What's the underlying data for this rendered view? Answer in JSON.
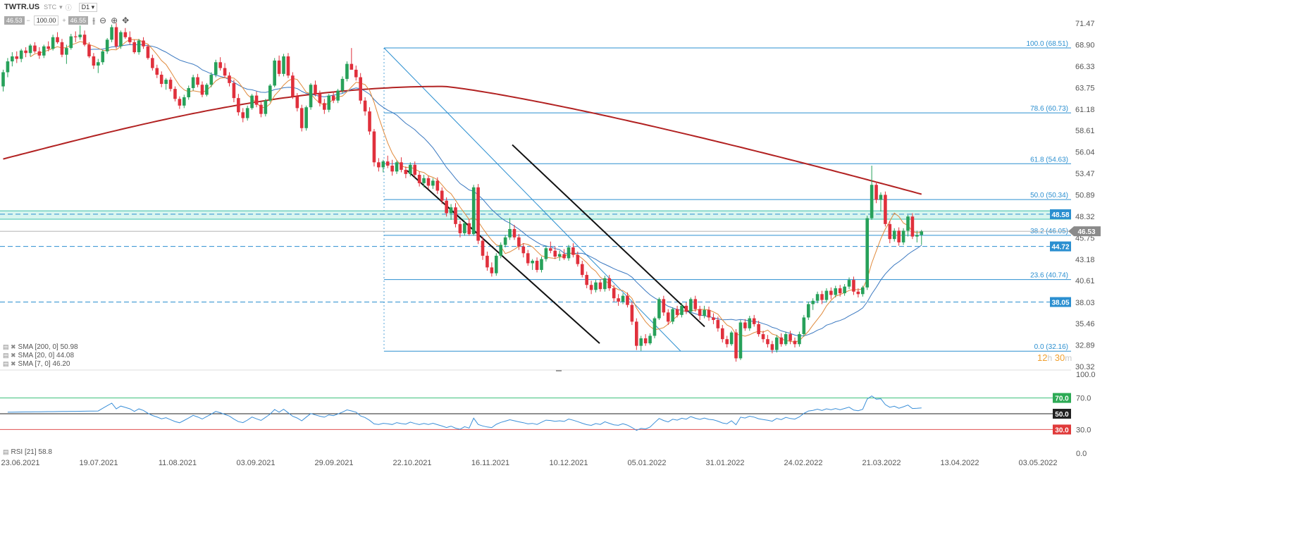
{
  "toolbar": {
    "symbol": "TWTR.US",
    "type": "STC",
    "info": "ⓘ",
    "interval": "D1",
    "bid": "46.53",
    "volume": "100.00",
    "ask": "46.55",
    "minus": "−",
    "plus": "+"
  },
  "legend": {
    "sma200": "SMA [200, 0] 50.98",
    "sma20": "SMA [20, 0] 44.08",
    "sma7": "SMA [7, 0] 46.20",
    "rsi": "RSI [21] 58.8"
  },
  "timer": {
    "hours": "12",
    "h": "h",
    "minutes": "30",
    "m": "m"
  },
  "colors": {
    "up": "#27a15a",
    "down": "#e0303c",
    "sma200": "#b22222",
    "sma20": "#3a78c0",
    "sma7": "#e08a3c",
    "fib": "#2b8fd0",
    "rsi": "#3b8fd8"
  },
  "chart_data": {
    "type": "candlestick",
    "ylim": [
      30.32,
      71.47
    ],
    "y_ticks": [
      "71.47",
      "68.90",
      "66.33",
      "63.75",
      "61.18",
      "58.61",
      "56.04",
      "53.47",
      "50.89",
      "48.32",
      "45.75",
      "43.18",
      "40.61",
      "38.03",
      "35.46",
      "32.89",
      "30.32"
    ],
    "x_ticks": [
      "23.06.2021",
      "19.07.2021",
      "11.08.2021",
      "03.09.2021",
      "29.09.2021",
      "22.10.2021",
      "16.11.2021",
      "10.12.2021",
      "05.01.2022",
      "31.01.2022",
      "24.02.2022",
      "21.03.2022",
      "13.04.2022",
      "03.05.2022"
    ],
    "fib_levels": [
      {
        "label": "100.0 (68.51)",
        "value": 68.51
      },
      {
        "label": "78.6 (60.73)",
        "value": 60.73
      },
      {
        "label": "61.8 (54.63)",
        "value": 54.63
      },
      {
        "label": "50.0 (50.34)",
        "value": 50.34
      },
      {
        "label": "38.2 (46.05)",
        "value": 46.05
      },
      {
        "label": "23.6 (40.74)",
        "value": 40.74
      },
      {
        "label": "0.0 (32.16)",
        "value": 32.16
      }
    ],
    "price_tags": [
      {
        "label": "48.58",
        "value": 48.58
      },
      {
        "label": "46.53",
        "value": 46.53
      },
      {
        "label": "44.72",
        "value": 44.72
      },
      {
        "label": "38.05",
        "value": 38.05
      }
    ],
    "rsi": {
      "ylim": [
        0,
        100
      ],
      "ticks": [
        "100.0",
        "70.0",
        "30.0",
        "0.0"
      ],
      "levels": [
        {
          "label": "70.0",
          "value": 70
        },
        {
          "label": "50.0",
          "value": 50
        },
        {
          "label": "30.0",
          "value": 30
        }
      ],
      "last": 58.8
    },
    "ohlc": [
      [
        63.9,
        65.9,
        63.3,
        65.6
      ],
      [
        65.6,
        67.3,
        65.0,
        66.9
      ],
      [
        66.9,
        68.0,
        66.3,
        67.5
      ],
      [
        67.5,
        68.1,
        66.7,
        67.2
      ],
      [
        67.2,
        68.4,
        66.8,
        68.2
      ],
      [
        68.2,
        68.6,
        67.4,
        67.9
      ],
      [
        67.9,
        69.0,
        67.5,
        68.8
      ],
      [
        68.8,
        69.2,
        67.9,
        68.1
      ],
      [
        68.1,
        68.6,
        67.2,
        67.6
      ],
      [
        67.6,
        68.9,
        67.3,
        68.7
      ],
      [
        68.7,
        69.3,
        68.1,
        68.4
      ],
      [
        68.4,
        70.1,
        68.2,
        69.8
      ],
      [
        69.8,
        70.4,
        69.0,
        69.2
      ],
      [
        69.2,
        69.6,
        67.4,
        67.7
      ],
      [
        67.7,
        68.9,
        66.6,
        68.5
      ],
      [
        68.5,
        70.2,
        68.3,
        69.9
      ],
      [
        69.9,
        70.5,
        69.2,
        69.8
      ],
      [
        69.8,
        71.2,
        69.5,
        70.1
      ],
      [
        70.1,
        70.6,
        68.7,
        68.9
      ],
      [
        68.9,
        69.2,
        67.3,
        67.5
      ],
      [
        67.5,
        67.9,
        66.0,
        66.4
      ],
      [
        66.4,
        67.2,
        65.5,
        66.8
      ],
      [
        66.8,
        68.3,
        66.5,
        68.1
      ],
      [
        68.1,
        69.7,
        67.8,
        69.5
      ],
      [
        69.5,
        71.3,
        69.2,
        71.0
      ],
      [
        71.0,
        71.5,
        68.4,
        68.7
      ],
      [
        68.7,
        70.6,
        68.4,
        70.4
      ],
      [
        70.4,
        70.9,
        69.6,
        69.8
      ],
      [
        69.8,
        70.5,
        68.9,
        69.2
      ],
      [
        69.2,
        69.5,
        67.8,
        68.0
      ],
      [
        68.0,
        69.6,
        67.7,
        69.4
      ],
      [
        69.4,
        69.8,
        68.4,
        68.7
      ],
      [
        68.7,
        68.9,
        67.1,
        67.3
      ],
      [
        67.3,
        67.7,
        65.8,
        66.1
      ],
      [
        66.1,
        66.5,
        64.9,
        65.3
      ],
      [
        65.3,
        65.7,
        63.8,
        64.2
      ],
      [
        64.2,
        64.9,
        63.5,
        64.7
      ],
      [
        64.7,
        65.0,
        63.3,
        63.6
      ],
      [
        63.6,
        63.9,
        62.1,
        62.4
      ],
      [
        62.4,
        62.7,
        61.2,
        61.6
      ],
      [
        61.6,
        62.9,
        61.3,
        62.6
      ],
      [
        62.6,
        64.0,
        62.3,
        63.7
      ],
      [
        63.7,
        65.3,
        63.4,
        65.0
      ],
      [
        65.0,
        65.4,
        63.8,
        64.1
      ],
      [
        64.1,
        64.5,
        62.6,
        62.9
      ],
      [
        62.9,
        64.3,
        62.7,
        64.1
      ],
      [
        64.1,
        65.6,
        63.8,
        65.3
      ],
      [
        65.3,
        67.1,
        65.0,
        66.8
      ],
      [
        66.8,
        67.4,
        65.8,
        66.1
      ],
      [
        66.1,
        66.7,
        64.9,
        65.2
      ],
      [
        65.2,
        65.6,
        63.9,
        64.3
      ],
      [
        64.3,
        64.7,
        62.0,
        62.5
      ],
      [
        62.5,
        63.0,
        60.4,
        60.8
      ],
      [
        60.8,
        61.3,
        59.6,
        60.1
      ],
      [
        60.1,
        61.6,
        59.8,
        61.3
      ],
      [
        61.3,
        63.0,
        61.1,
        62.8
      ],
      [
        62.8,
        63.3,
        61.4,
        61.7
      ],
      [
        61.7,
        62.0,
        60.2,
        60.6
      ],
      [
        60.6,
        62.4,
        60.3,
        62.2
      ],
      [
        62.2,
        64.2,
        62.0,
        64.0
      ],
      [
        64.0,
        67.3,
        63.8,
        67.0
      ],
      [
        67.0,
        67.6,
        65.1,
        65.4
      ],
      [
        65.4,
        67.8,
        65.1,
        67.5
      ],
      [
        67.5,
        67.9,
        64.9,
        65.2
      ],
      [
        65.2,
        65.6,
        62.4,
        62.7
      ],
      [
        62.7,
        63.1,
        60.9,
        61.3
      ],
      [
        61.3,
        61.7,
        58.5,
        58.9
      ],
      [
        58.9,
        61.6,
        58.6,
        61.4
      ],
      [
        61.4,
        64.3,
        61.1,
        64.1
      ],
      [
        64.1,
        64.6,
        62.7,
        63.0
      ],
      [
        63.0,
        63.4,
        61.5,
        61.9
      ],
      [
        61.9,
        62.4,
        60.6,
        61.1
      ],
      [
        61.1,
        63.0,
        60.8,
        62.8
      ],
      [
        62.8,
        63.3,
        61.9,
        62.2
      ],
      [
        62.2,
        63.6,
        61.9,
        63.4
      ],
      [
        63.4,
        65.1,
        63.1,
        64.8
      ],
      [
        64.8,
        66.9,
        64.5,
        66.6
      ],
      [
        66.6,
        68.5,
        66.3,
        65.9
      ],
      [
        65.9,
        66.4,
        64.6,
        65.0
      ],
      [
        65.0,
        65.5,
        61.8,
        62.2
      ],
      [
        62.2,
        62.6,
        60.4,
        60.9
      ],
      [
        60.9,
        61.4,
        58.1,
        58.5
      ],
      [
        58.5,
        58.8,
        54.3,
        54.8
      ],
      [
        54.8,
        55.3,
        53.7,
        54.2
      ],
      [
        54.2,
        55.1,
        53.6,
        54.9
      ],
      [
        54.9,
        55.6,
        54.1,
        54.4
      ],
      [
        54.4,
        55.1,
        53.2,
        53.7
      ],
      [
        53.7,
        55.0,
        53.4,
        54.8
      ],
      [
        54.8,
        55.4,
        53.6,
        53.9
      ],
      [
        53.9,
        54.3,
        52.9,
        53.4
      ],
      [
        53.4,
        54.8,
        53.1,
        54.5
      ],
      [
        54.5,
        54.9,
        53.0,
        53.3
      ],
      [
        53.3,
        53.7,
        51.9,
        52.3
      ],
      [
        52.3,
        53.3,
        51.8,
        52.9
      ],
      [
        52.9,
        53.2,
        51.6,
        52.0
      ],
      [
        52.0,
        52.9,
        51.6,
        52.6
      ],
      [
        52.6,
        53.0,
        51.0,
        51.4
      ],
      [
        51.4,
        51.8,
        49.8,
        50.2
      ],
      [
        50.2,
        50.6,
        48.3,
        48.7
      ],
      [
        48.7,
        49.8,
        47.9,
        49.4
      ],
      [
        49.4,
        49.9,
        47.0,
        47.4
      ],
      [
        47.4,
        47.8,
        45.8,
        46.3
      ],
      [
        46.3,
        47.8,
        46.0,
        47.5
      ],
      [
        47.5,
        48.0,
        46.0,
        46.2
      ],
      [
        46.2,
        52.1,
        46.0,
        51.8
      ],
      [
        51.8,
        52.2,
        45.0,
        45.4
      ],
      [
        45.4,
        45.9,
        43.1,
        43.6
      ],
      [
        43.6,
        44.1,
        41.8,
        42.2
      ],
      [
        42.2,
        42.8,
        41.1,
        41.5
      ],
      [
        41.5,
        43.9,
        41.2,
        43.6
      ],
      [
        43.6,
        45.2,
        43.3,
        44.9
      ],
      [
        44.9,
        46.1,
        44.6,
        45.8
      ],
      [
        45.8,
        48.1,
        45.5,
        46.8
      ],
      [
        46.8,
        47.3,
        45.5,
        45.8
      ],
      [
        45.8,
        46.2,
        44.3,
        44.7
      ],
      [
        44.7,
        45.1,
        43.4,
        43.9
      ],
      [
        43.9,
        44.3,
        42.4,
        42.7
      ],
      [
        42.7,
        43.2,
        41.9,
        43.0
      ],
      [
        43.0,
        43.4,
        41.6,
        41.9
      ],
      [
        41.9,
        43.5,
        41.6,
        43.2
      ],
      [
        43.2,
        44.8,
        42.9,
        44.5
      ],
      [
        44.5,
        45.3,
        43.9,
        44.2
      ],
      [
        44.2,
        44.7,
        43.2,
        43.5
      ],
      [
        43.5,
        44.2,
        43.0,
        43.8
      ],
      [
        43.8,
        44.4,
        43.1,
        43.3
      ],
      [
        43.3,
        44.9,
        43.0,
        44.6
      ],
      [
        44.6,
        45.1,
        43.4,
        43.7
      ],
      [
        43.7,
        44.1,
        42.3,
        42.6
      ],
      [
        42.6,
        43.0,
        41.0,
        41.3
      ],
      [
        41.3,
        41.7,
        39.7,
        40.1
      ],
      [
        40.1,
        40.6,
        39.0,
        39.5
      ],
      [
        39.5,
        40.7,
        39.2,
        40.4
      ],
      [
        40.4,
        40.8,
        39.3,
        39.6
      ],
      [
        39.6,
        41.2,
        39.3,
        40.9
      ],
      [
        40.9,
        41.3,
        39.4,
        39.7
      ],
      [
        39.7,
        40.1,
        38.1,
        38.5
      ],
      [
        38.5,
        39.0,
        37.6,
        38.1
      ],
      [
        38.1,
        39.1,
        37.8,
        38.8
      ],
      [
        38.8,
        39.2,
        37.4,
        37.7
      ],
      [
        37.7,
        38.1,
        35.3,
        35.7
      ],
      [
        35.7,
        36.1,
        32.3,
        32.8
      ],
      [
        32.8,
        34.0,
        32.2,
        33.7
      ],
      [
        33.7,
        34.2,
        32.8,
        33.1
      ],
      [
        33.1,
        34.3,
        32.9,
        34.0
      ],
      [
        34.0,
        36.3,
        33.7,
        36.1
      ],
      [
        36.1,
        38.6,
        35.9,
        38.4
      ],
      [
        38.4,
        38.8,
        36.4,
        36.8
      ],
      [
        36.8,
        37.2,
        35.3,
        35.7
      ],
      [
        35.7,
        37.4,
        35.4,
        37.2
      ],
      [
        37.2,
        37.6,
        36.2,
        36.5
      ],
      [
        36.5,
        37.9,
        36.2,
        37.6
      ],
      [
        37.6,
        38.0,
        36.6,
        36.9
      ],
      [
        36.9,
        38.6,
        36.6,
        38.4
      ],
      [
        38.4,
        38.8,
        36.9,
        37.2
      ],
      [
        37.2,
        37.6,
        35.9,
        36.4
      ],
      [
        36.4,
        37.6,
        36.1,
        37.1
      ],
      [
        37.1,
        37.5,
        35.8,
        36.2
      ],
      [
        36.2,
        36.7,
        35.4,
        35.9
      ],
      [
        35.9,
        36.3,
        34.5,
        34.9
      ],
      [
        34.9,
        35.3,
        33.2,
        33.6
      ],
      [
        33.6,
        34.0,
        32.6,
        33.0
      ],
      [
        33.0,
        34.6,
        32.8,
        34.4
      ],
      [
        34.4,
        34.8,
        30.9,
        31.3
      ],
      [
        31.3,
        35.9,
        31.1,
        35.6
      ],
      [
        35.6,
        36.0,
        34.6,
        34.9
      ],
      [
        34.9,
        36.4,
        34.6,
        36.1
      ],
      [
        36.1,
        36.5,
        35.1,
        35.4
      ],
      [
        35.4,
        35.8,
        33.9,
        34.2
      ],
      [
        34.2,
        34.6,
        33.2,
        33.6
      ],
      [
        33.6,
        34.1,
        32.6,
        33.0
      ],
      [
        33.0,
        33.4,
        31.9,
        32.3
      ],
      [
        32.3,
        34.1,
        32.0,
        33.8
      ],
      [
        33.8,
        34.3,
        32.7,
        33.0
      ],
      [
        33.0,
        34.5,
        32.8,
        34.2
      ],
      [
        34.2,
        34.6,
        33.0,
        33.4
      ],
      [
        33.4,
        33.8,
        32.6,
        33.0
      ],
      [
        33.0,
        34.5,
        32.7,
        34.2
      ],
      [
        34.2,
        36.5,
        33.9,
        36.2
      ],
      [
        36.2,
        38.1,
        35.9,
        37.8
      ],
      [
        37.8,
        38.5,
        37.1,
        38.2
      ],
      [
        38.2,
        39.3,
        37.9,
        39.0
      ],
      [
        39.0,
        39.4,
        37.8,
        38.3
      ],
      [
        38.3,
        39.7,
        38.0,
        39.4
      ],
      [
        39.4,
        39.8,
        38.4,
        38.9
      ],
      [
        38.9,
        40.0,
        38.6,
        39.7
      ],
      [
        39.7,
        40.1,
        38.7,
        39.1
      ],
      [
        39.1,
        40.2,
        38.8,
        39.9
      ],
      [
        39.9,
        41.0,
        39.6,
        40.7
      ],
      [
        40.7,
        41.1,
        38.9,
        39.3
      ],
      [
        39.3,
        39.7,
        38.6,
        39.0
      ],
      [
        39.0,
        40.0,
        38.7,
        39.8
      ],
      [
        39.8,
        48.4,
        39.5,
        48.1
      ],
      [
        48.1,
        54.4,
        47.9,
        52.1
      ],
      [
        52.1,
        52.5,
        49.9,
        50.3
      ],
      [
        50.3,
        51.2,
        48.9,
        50.9
      ],
      [
        50.9,
        51.3,
        47.1,
        47.4
      ],
      [
        47.4,
        47.8,
        45.1,
        45.6
      ],
      [
        45.6,
        46.9,
        45.3,
        46.6
      ],
      [
        46.6,
        47.0,
        44.8,
        45.2
      ],
      [
        45.2,
        46.9,
        44.9,
        46.6
      ],
      [
        46.6,
        48.5,
        45.9,
        48.3
      ],
      [
        48.3,
        48.7,
        45.6,
        45.9
      ],
      [
        45.9,
        46.6,
        45.2,
        46.1
      ],
      [
        46.1,
        46.7,
        44.9,
        46.5
      ]
    ]
  }
}
